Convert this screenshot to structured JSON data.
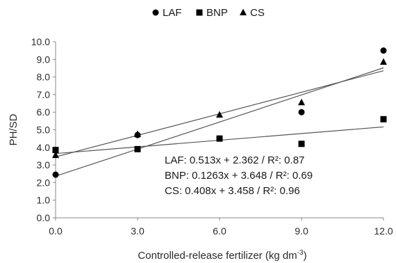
{
  "chart_data": {
    "type": "scatter",
    "xlabel": "Controlled-release fertilizer (kg dm",
    "xlabel_superscript": "-3",
    "xlabel_suffix": ")",
    "ylabel": "PH/SD",
    "x_ticks": [
      "0.0",
      "3.0",
      "6.0",
      "9.0",
      "12.0"
    ],
    "y_ticks": [
      "0.0",
      "1.0",
      "2.0",
      "3.0",
      "4.0",
      "5.0",
      "6.0",
      "7.0",
      "8.0",
      "9.0",
      "10.0"
    ],
    "xlim": [
      0,
      12
    ],
    "ylim": [
      0,
      10
    ],
    "grid": false,
    "legend_position": "top-right",
    "x": [
      0,
      3,
      6,
      9,
      12
    ],
    "series": [
      {
        "name": "LAF",
        "marker": "circle",
        "values": [
          2.45,
          4.7,
          4.5,
          6.0,
          9.5
        ],
        "fit": {
          "slope": 0.513,
          "intercept": 2.362
        }
      },
      {
        "name": "BNP",
        "marker": "square",
        "values": [
          3.85,
          3.9,
          4.5,
          4.2,
          5.6
        ],
        "fit": {
          "slope": 0.1263,
          "intercept": 3.648
        }
      },
      {
        "name": "CS",
        "marker": "triangle",
        "values": [
          3.55,
          4.75,
          5.85,
          6.55,
          8.85
        ],
        "fit": {
          "slope": 0.408,
          "intercept": 3.458
        }
      }
    ],
    "annotations": [
      "LAF: 0.513x + 2.362 / R²: 0.87",
      "BNP: 0.1263x + 3.648 / R²: 0.69",
      "CS: 0.408x + 3.458 / R²: 0.96"
    ],
    "colors": {
      "marker": "#000000",
      "trendline": "#555555",
      "axis": "#888888"
    }
  }
}
